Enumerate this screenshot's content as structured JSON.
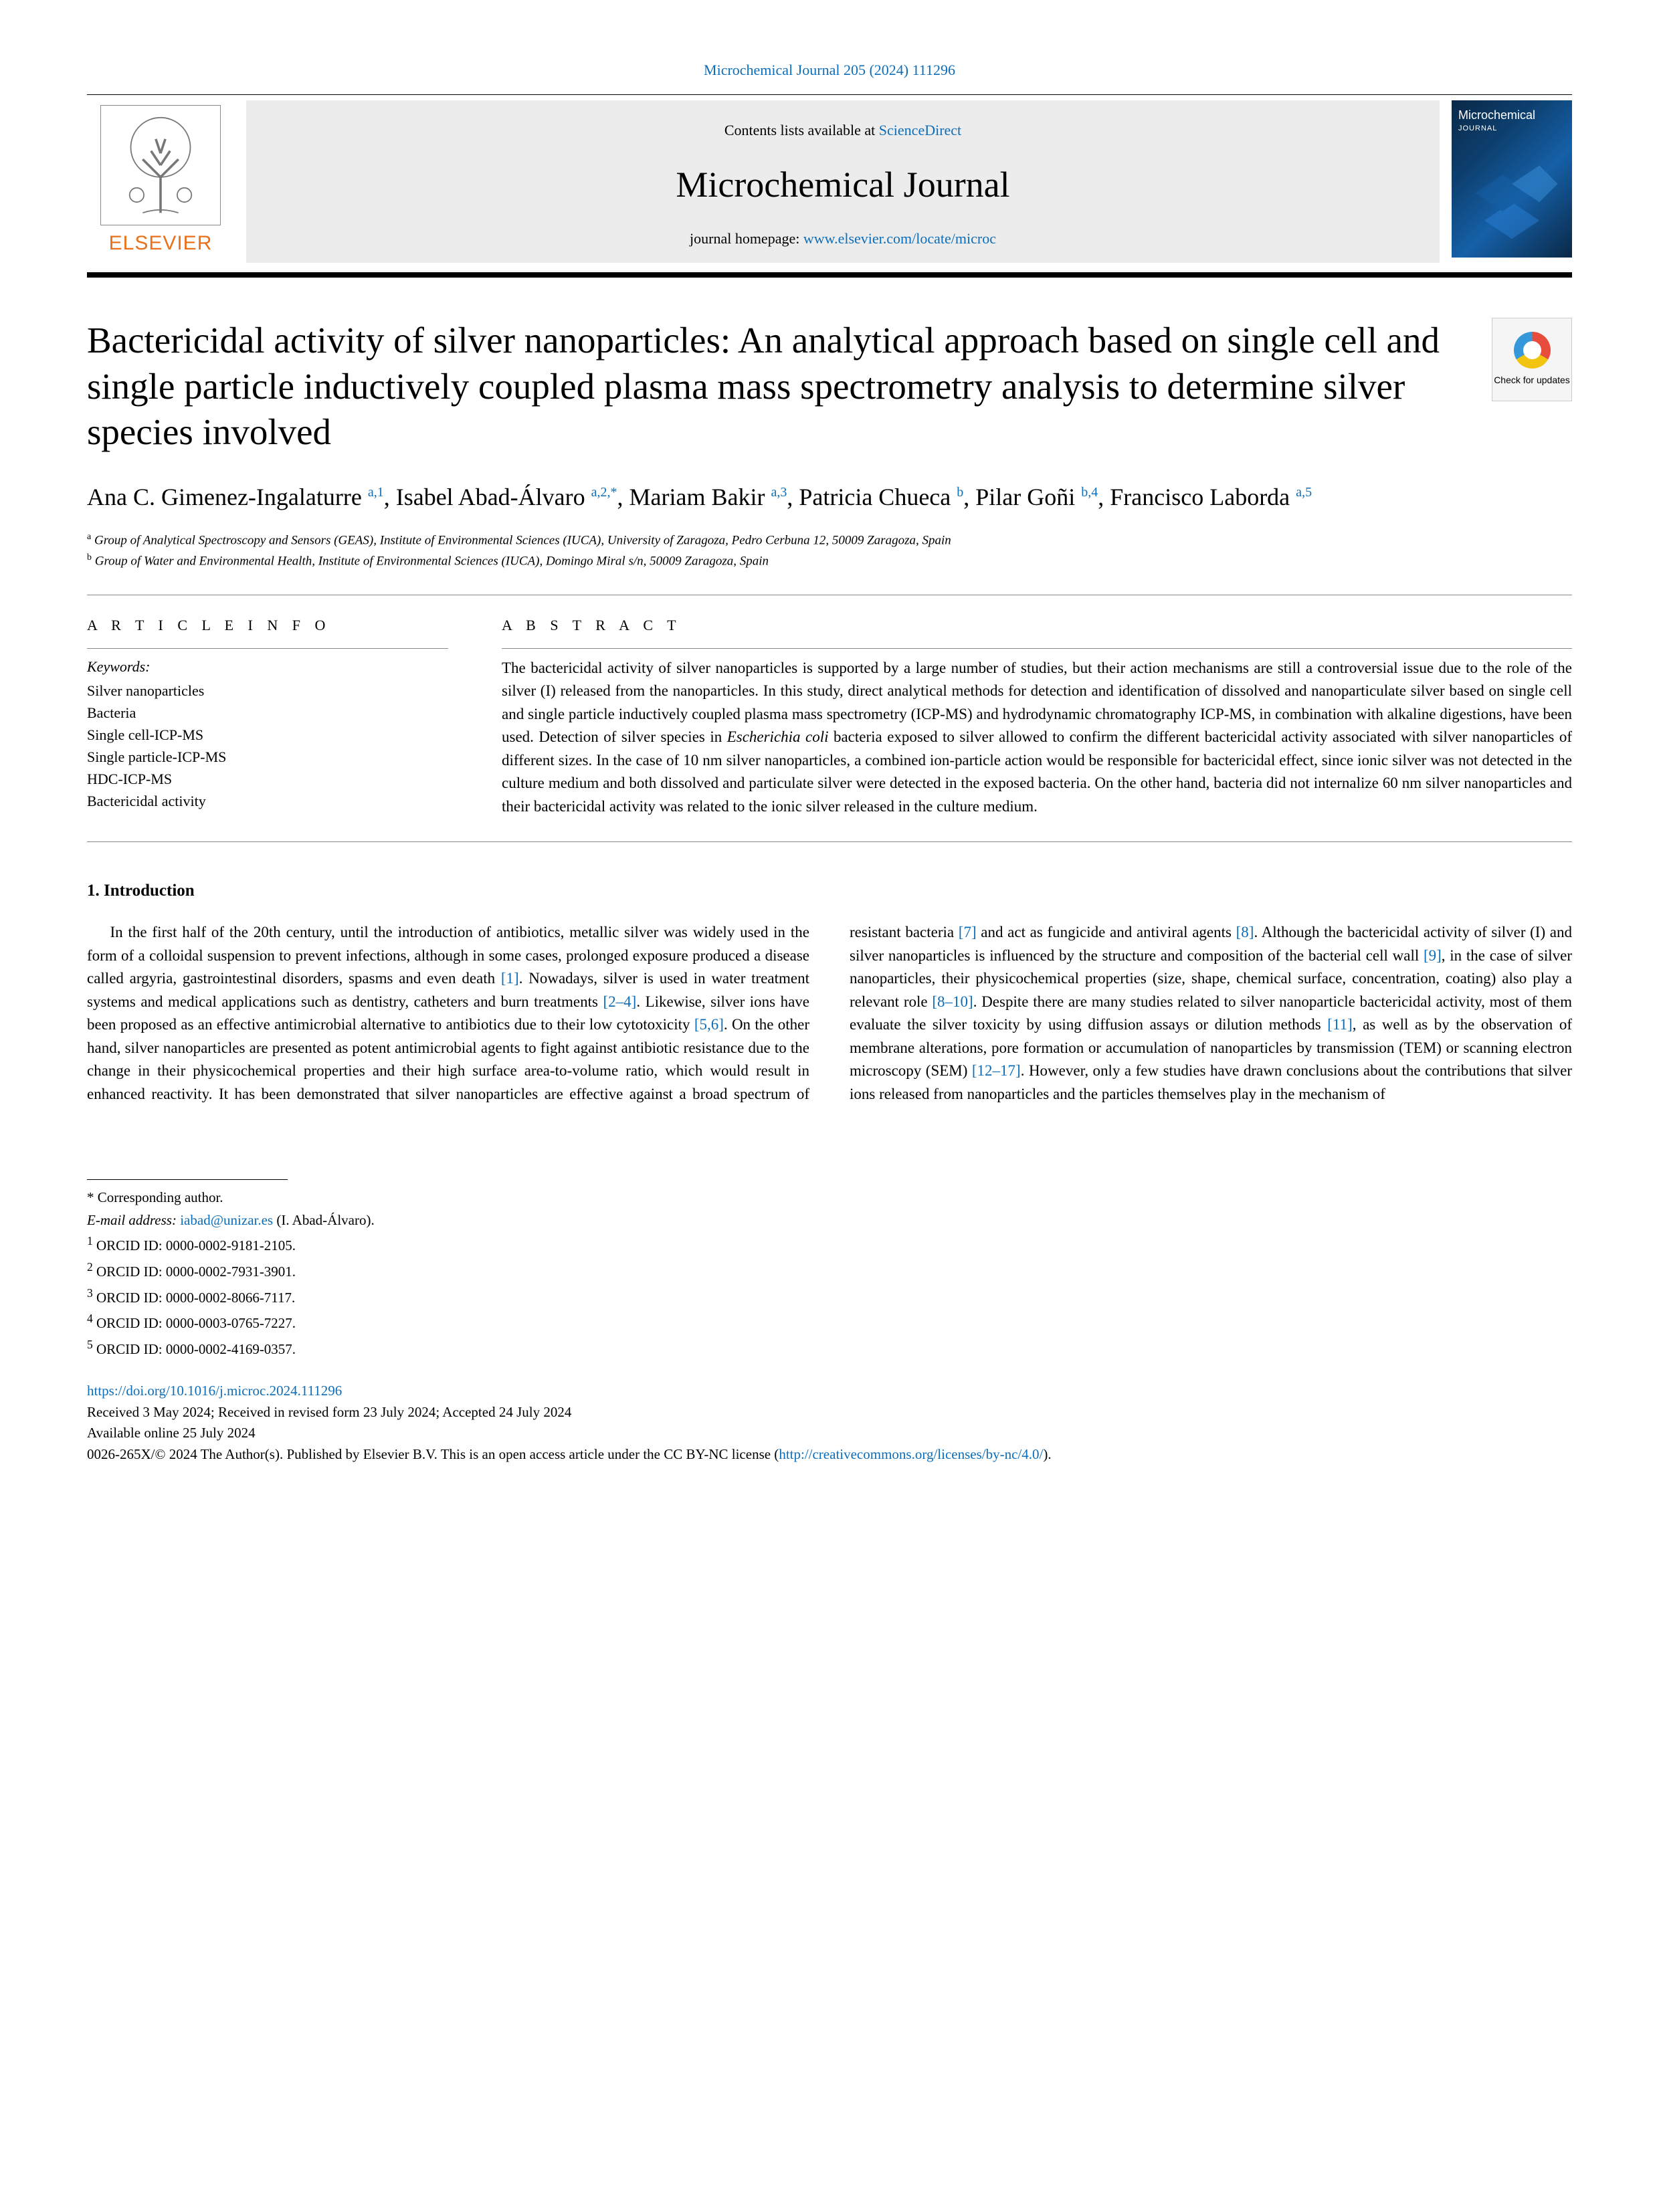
{
  "citation": {
    "text": "Microchemical Journal 205 (2024) 111296"
  },
  "masthead": {
    "contents_prefix": "Contents lists available at ",
    "contents_link": "ScienceDirect",
    "journal_name": "Microchemical Journal",
    "homepage_prefix": "journal homepage: ",
    "homepage_link": "www.elsevier.com/locate/microc",
    "elsevier_label": "ELSEVIER",
    "cover_title": "Microchemical",
    "cover_sub": "JOURNAL",
    "check_updates": "Check for updates"
  },
  "title": "Bactericidal activity of silver nanoparticles: An analytical approach based on single cell and single particle inductively coupled plasma mass spectrometry analysis to determine silver species involved",
  "authors_html": "Ana C. Gimenez-Ingalaturre <sup><a>a</a>,<a>1</a></sup>, Isabel Abad-Álvaro <sup><a>a</a>,<a>2</a>,<a>*</a></sup>, Mariam Bakir <sup><a>a</a>,<a>3</a></sup>, Patricia Chueca <sup><a>b</a></sup>, Pilar Goñi <sup><a>b</a>,<a>4</a></sup>, Francisco Laborda <sup><a>a</a>,<a>5</a></sup>",
  "affiliations": {
    "a": "Group of Analytical Spectroscopy and Sensors (GEAS), Institute of Environmental Sciences (IUCA), University of Zaragoza, Pedro Cerbuna 12, 50009 Zaragoza, Spain",
    "b": "Group of Water and Environmental Health, Institute of Environmental Sciences (IUCA), Domingo Miral s/n, 50009 Zaragoza, Spain"
  },
  "info": {
    "heading": "A R T I C L E  I N F O",
    "keywords_label": "Keywords:",
    "keywords": [
      "Silver nanoparticles",
      "Bacteria",
      "Single cell-ICP-MS",
      "Single particle-ICP-MS",
      "HDC-ICP-MS",
      "Bactericidal activity"
    ]
  },
  "abstract": {
    "heading": "A B S T R A C T",
    "text": "The bactericidal activity of silver nanoparticles is supported by a large number of studies, but their action mechanisms are still a controversial issue due to the role of the silver (I) released from the nanoparticles. In this study, direct analytical methods for detection and identification of dissolved and nanoparticulate silver based on single cell and single particle inductively coupled plasma mass spectrometry (ICP-MS) and hydrodynamic chromatography ICP-MS, in combination with alkaline digestions, have been used. Detection of silver species in Escherichia coli bacteria exposed to silver allowed to confirm the different bactericidal activity associated with silver nanoparticles of different sizes. In the case of 10 nm silver nanoparticles, a combined ion-particle action would be responsible for bactericidal effect, since ionic silver was not detected in the culture medium and both dissolved and particulate silver were detected in the exposed bacteria. On the other hand, bacteria did not internalize 60 nm silver nanoparticles and their bactericidal activity was related to the ionic silver released in the culture medium."
  },
  "section1": {
    "heading": "1. Introduction",
    "para": "In the first half of the 20th century, until the introduction of antibiotics, metallic silver was widely used in the form of a colloidal suspension to prevent infections, although in some cases, prolonged exposure produced a disease called argyria, gastrointestinal disorders, spasms and even death [1]. Nowadays, silver is used in water treatment systems and medical applications such as dentistry, catheters and burn treatments [2–4]. Likewise, silver ions have been proposed as an effective antimicrobial alternative to antibiotics due to their low cytotoxicity [5,6]. On the other hand, silver nanoparticles are presented as potent antimicrobial agents to fight against antibiotic resistance due to the change in their physicochemical properties and their high surface area-to-volume ratio, which would result in enhanced reactivity. It has been demonstrated that silver nanoparticles are effective against a broad spectrum of resistant bacteria [7] and act as fungicide and antiviral agents [8]. Although the bactericidal activity of silver (I) and silver nanoparticles is influenced by the structure and composition of the bacterial cell wall [9], in the case of silver nanoparticles, their physicochemical properties (size, shape, chemical surface, concentration, coating) also play a relevant role [8–10]. Despite there are many studies related to silver nanoparticle bactericidal activity, most of them evaluate the silver toxicity by using diffusion assays or dilution methods [11], as well as by the observation of membrane alterations, pore formation or accumulation of nanoparticles by transmission (TEM) or scanning electron microscopy (SEM) [12–17]. However, only a few studies have drawn conclusions about the contributions that silver ions released from nanoparticles and the particles themselves play in the mechanism of"
  },
  "footnotes": {
    "corr": "* Corresponding author.",
    "email_label": "E-mail address: ",
    "email": "iabad@unizar.es",
    "email_suffix": " (I. Abad-Álvaro).",
    "orcids": [
      "ORCID ID: 0000-0002-9181-2105.",
      "ORCID ID: 0000-0002-7931-3901.",
      "ORCID ID: 0000-0002-8066-7117.",
      "ORCID ID: 0000-0003-0765-7227.",
      "ORCID ID: 0000-0002-4169-0357."
    ]
  },
  "doi": {
    "link": "https://doi.org/10.1016/j.microc.2024.111296",
    "received": "Received 3 May 2024; Received in revised form 23 July 2024; Accepted 24 July 2024",
    "online": "Available online 25 July 2024",
    "copyright_prefix": "0026-265X/© 2024 The Author(s). Published by Elsevier B.V. This is an open access article under the CC BY-NC license (",
    "license_link": "http://creativecommons.org/licenses/by-nc/4.0/",
    "copyright_suffix": ")."
  },
  "colors": {
    "link": "#0d6db8",
    "elsevier_orange": "#e9711c",
    "masthead_bg": "#ececec"
  }
}
